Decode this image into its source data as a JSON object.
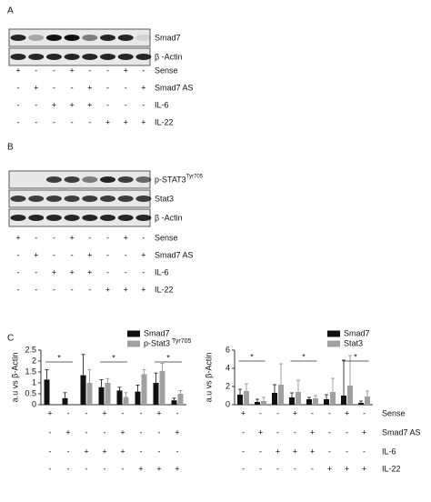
{
  "panel_a": {
    "label": "A",
    "blots": [
      {
        "name": "Smad7"
      },
      {
        "name": "β -Actin"
      }
    ],
    "conditions": [
      {
        "name": "Sense",
        "signs": [
          "+",
          "-",
          "-",
          "+",
          "-",
          "-",
          "+",
          "-"
        ]
      },
      {
        "name": "Smad7 AS",
        "signs": [
          "-",
          "+",
          "-",
          "-",
          "+",
          "-",
          "-",
          "+"
        ]
      },
      {
        "name": "IL-6",
        "signs": [
          "-",
          "-",
          "+",
          "+",
          "+",
          "-",
          "-",
          "-"
        ]
      },
      {
        "name": "IL-22",
        "signs": [
          "-",
          "-",
          "-",
          "-",
          "-",
          "+",
          "+",
          "+"
        ]
      }
    ]
  },
  "panel_b": {
    "label": "B",
    "blots": [
      {
        "name": "p-STAT3",
        "sup": "Tyr705"
      },
      {
        "name": "Stat3"
      },
      {
        "name": "β -Actin"
      }
    ],
    "conditions": [
      {
        "name": "Sense",
        "signs": [
          "+",
          "-",
          "-",
          "+",
          "-",
          "-",
          "+",
          "-"
        ]
      },
      {
        "name": "Smad7 AS",
        "signs": [
          "-",
          "+",
          "-",
          "-",
          "+",
          "-",
          "-",
          "+"
        ]
      },
      {
        "name": "IL-6",
        "signs": [
          "-",
          "-",
          "+",
          "+",
          "+",
          "-",
          "-",
          "-"
        ]
      },
      {
        "name": "IL-22",
        "signs": [
          "-",
          "-",
          "-",
          "-",
          "-",
          "+",
          "+",
          "+"
        ]
      }
    ]
  },
  "panel_c": {
    "label": "C",
    "conditions": [
      "Sense",
      "Smad7 AS",
      "IL-6",
      "IL-22"
    ]
  },
  "chart_data": [
    {
      "type": "bar",
      "ylabel": "a.u vs β-Actin",
      "ylim": [
        0,
        2.5
      ],
      "yticks": [
        0,
        0.5,
        1.0,
        1.5,
        2.0,
        2.5
      ],
      "series": [
        {
          "name": "Smad7",
          "color": "#111111",
          "values": [
            1.15,
            0.3,
            1.35,
            0.8,
            0.65,
            0.6,
            1.0,
            0.2
          ],
          "errors": [
            0.45,
            0.25,
            0.95,
            0.35,
            0.15,
            0.3,
            0.45,
            0.1
          ]
        },
        {
          "name": "p-Stat3",
          "name_sup": "Tyr705",
          "color": "#a0a0a0",
          "values": [
            0,
            0,
            1.0,
            1.0,
            0.35,
            1.4,
            1.55,
            0.5
          ],
          "errors": [
            0,
            0,
            0.6,
            0.2,
            0.2,
            0.2,
            0.35,
            0.15
          ]
        }
      ],
      "annotations": [
        "*",
        "*",
        "*"
      ],
      "conditions": [
        [
          "+",
          "-",
          "-",
          "+",
          "-",
          "-",
          "+",
          "-"
        ],
        [
          "-",
          "+",
          "-",
          "-",
          "+",
          "-",
          "-",
          "+"
        ],
        [
          "-",
          "-",
          "+",
          "+",
          "+",
          "-",
          "-",
          "-"
        ],
        [
          "-",
          "-",
          "-",
          "-",
          "-",
          "+",
          "+",
          "+"
        ]
      ]
    },
    {
      "type": "bar",
      "ylabel": "a.u vs β-Actin",
      "ylim": [
        0,
        6
      ],
      "yticks": [
        0,
        2,
        4,
        6
      ],
      "series": [
        {
          "name": "Smad7",
          "color": "#111111",
          "values": [
            1.1,
            0.3,
            1.3,
            0.8,
            0.6,
            0.6,
            1.0,
            0.2
          ],
          "errors": [
            0.6,
            0.3,
            0.9,
            0.5,
            0.2,
            0.5,
            3.9,
            0.2
          ]
        },
        {
          "name": "Stat3",
          "color": "#a0a0a0",
          "values": [
            1.5,
            0.4,
            2.2,
            1.4,
            0.7,
            1.4,
            2.1,
            0.9
          ],
          "errors": [
            0.8,
            0.4,
            2.3,
            1.3,
            0.3,
            1.5,
            3.3,
            0.6
          ]
        }
      ],
      "annotations": [
        "*",
        "*",
        "*"
      ],
      "conditions": [
        [
          "+",
          "-",
          "-",
          "+",
          "-",
          "-",
          "+",
          "-"
        ],
        [
          "-",
          "+",
          "-",
          "-",
          "+",
          "-",
          "-",
          "+"
        ],
        [
          "-",
          "-",
          "+",
          "+",
          "+",
          "-",
          "-",
          "-"
        ],
        [
          "-",
          "-",
          "-",
          "-",
          "-",
          "+",
          "+",
          "+"
        ]
      ]
    }
  ]
}
